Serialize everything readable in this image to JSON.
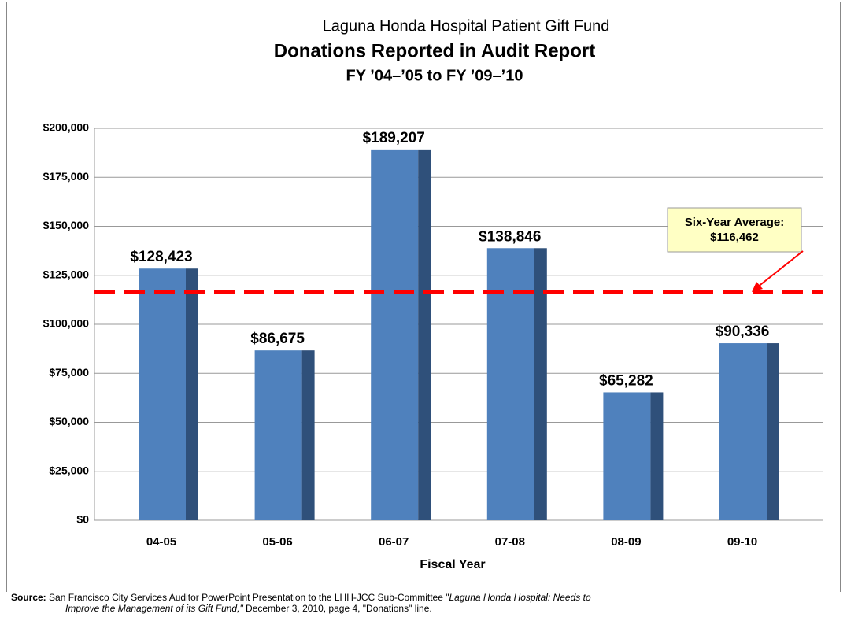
{
  "chart_data": {
    "type": "bar",
    "title": "Laguna Honda Hospital Patient Gift Fund",
    "subtitle": "Donations Reported in Audit Report",
    "subtitle2": "FY ’04–’05 to FY ’09–’10",
    "x_label": "Fiscal Year",
    "categories": [
      "04-05",
      "05-06",
      "06-07",
      "07-08",
      "08-09",
      "09-10"
    ],
    "values": [
      128423,
      86675,
      189207,
      138846,
      65282,
      90336
    ],
    "value_labels": [
      "$128,423",
      "$86,675",
      "$189,207",
      "$138,846",
      "$65,282",
      "$90,336"
    ],
    "color": "#4f81bd",
    "side_color": "#2f507a",
    "ylim": [
      0,
      200000
    ],
    "yticks": [
      {
        "value": 0,
        "label": "$0"
      },
      {
        "value": 25000,
        "label": "$25,000"
      },
      {
        "value": 50000,
        "label": "$50,000"
      },
      {
        "value": 75000,
        "label": "$75,000"
      },
      {
        "value": 100000,
        "label": "$100,000"
      },
      {
        "value": 125000,
        "label": "$125,000"
      },
      {
        "value": 150000,
        "label": "$150,000"
      },
      {
        "value": 175000,
        "label": "$175,000"
      },
      {
        "value": 200000,
        "label": "$200,000"
      }
    ],
    "grid": true,
    "average": {
      "name": "Six-Year Average:",
      "value": 116462,
      "value_label": "$116,462",
      "color": "#ff0000"
    }
  },
  "source": {
    "label": "Source:",
    "text": "San Francisco City Services Auditor PowerPoint Presentation to the LHH-JCC Sub-Committee \"",
    "italic_1": "Laguna Honda Hospital: Needs to",
    "italic_2": "Improve the Management of its Gift Fund,\"",
    "text_2": " December 3, 2010, page 4, \"Donations\" line."
  }
}
